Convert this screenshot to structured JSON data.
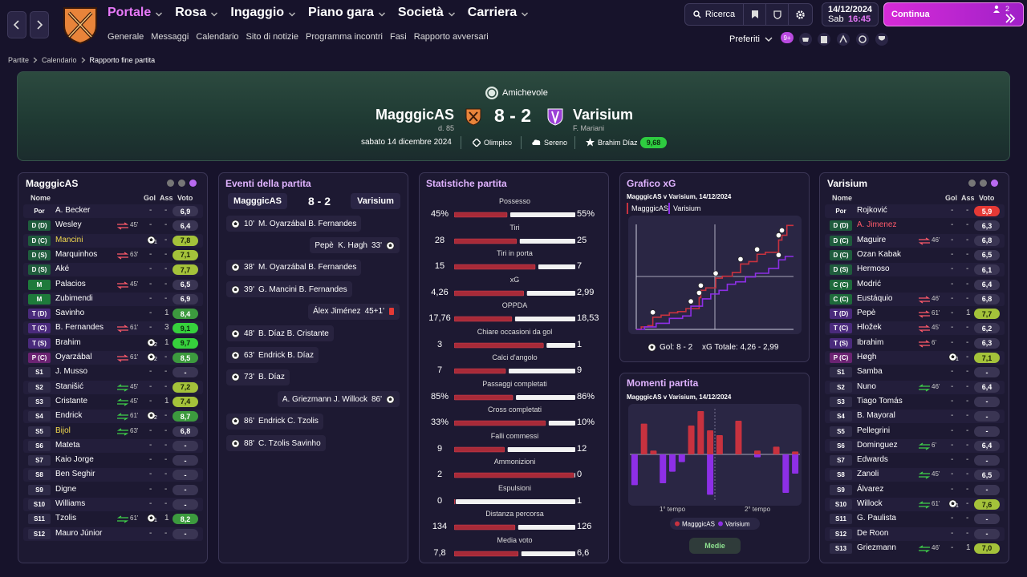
{
  "nav": {
    "menus": [
      "Portale",
      "Rosa",
      "Ingaggio",
      "Piano gara",
      "Società",
      "Carriera"
    ],
    "submenu": [
      "Generale",
      "Messaggi",
      "Calendario",
      "Sito di notizie",
      "Programma incontri",
      "Fasi",
      "Rapporto avversari"
    ],
    "search": "Ricerca",
    "date": "14/12/2024",
    "day": "Sab",
    "time": "16:45",
    "continue": "Continua",
    "notifications": "2",
    "favorites": "Preferiti",
    "badge": "9+"
  },
  "breadcrumb": [
    "Partite",
    "Calendario",
    "Rapporto fine partita"
  ],
  "match": {
    "competition": "Amichevole",
    "home": "MagggicAS",
    "home_note": "d. 85",
    "score": "8 - 2",
    "away": "Varisium",
    "away_note": "F. Mariani",
    "date": "sabato 14 dicembre 2024",
    "stadium": "Olimpico",
    "weather": "Sereno",
    "motm": "Brahim Díaz",
    "motm_rating": "9,68"
  },
  "lineups": {
    "columns": [
      "Nome",
      "Gol",
      "Ass",
      "Voto"
    ],
    "home": {
      "team": "MagggicAS",
      "players": [
        {
          "pos": "Por",
          "name": "A. Becker",
          "gol": "-",
          "ass": "-",
          "voto": "6,9"
        },
        {
          "pos": "D (D)",
          "name": "Wesley",
          "sub": "45'",
          "sub_dir": "out",
          "gol": "-",
          "ass": "-",
          "voto": "6,4"
        },
        {
          "pos": "D (C)",
          "name": "Mancini",
          "color": "#f2d94e",
          "gol": 1,
          "ass": "-",
          "voto": "7,8"
        },
        {
          "pos": "D (S)",
          "name": "Marquinhos",
          "sub": "63'",
          "sub_dir": "out",
          "gol": "-",
          "ass": "-",
          "voto": "7,1"
        },
        {
          "pos": "D (S)",
          "name": "Aké",
          "gol": "-",
          "ass": "-",
          "voto": "7,7"
        },
        {
          "pos": "M",
          "name": "Palacios",
          "sub": "45'",
          "sub_dir": "out",
          "gol": "-",
          "ass": "-",
          "voto": "6,5"
        },
        {
          "pos": "M",
          "name": "Zubimendi",
          "gol": "-",
          "ass": "-",
          "voto": "6,9"
        },
        {
          "pos": "T (D)",
          "name": "Savinho",
          "gol": "-",
          "ass": 1,
          "voto": "8,4"
        },
        {
          "pos": "T (C)",
          "name": "B. Fernandes",
          "sub": "61'",
          "sub_dir": "out",
          "gol": "-",
          "ass": 3,
          "voto": "9,1"
        },
        {
          "pos": "T (S)",
          "name": "Brahim",
          "gol": 2,
          "ass": 1,
          "voto": "9,7"
        },
        {
          "pos": "P (C)",
          "name": "Oyarzábal",
          "sub": "61'",
          "sub_dir": "out",
          "gol": 2,
          "ass": "-",
          "voto": "8,5"
        },
        {
          "pos": "S1",
          "name": "J. Musso",
          "gol": "-",
          "ass": "-",
          "voto": "-"
        },
        {
          "pos": "S2",
          "name": "Stanišić",
          "sub": "45'",
          "sub_dir": "in",
          "gol": "-",
          "ass": "-",
          "voto": "7,2"
        },
        {
          "pos": "S3",
          "name": "Cristante",
          "sub": "45'",
          "sub_dir": "in",
          "gol": "-",
          "ass": 1,
          "voto": "7,4"
        },
        {
          "pos": "S4",
          "name": "Endrick",
          "sub": "61'",
          "sub_dir": "in",
          "gol": 2,
          "ass": "-",
          "voto": "8,7"
        },
        {
          "pos": "S5",
          "name": "Bijol",
          "color": "#f2d94e",
          "sub": "63'",
          "sub_dir": "in",
          "gol": "-",
          "ass": "-",
          "voto": "6,8"
        },
        {
          "pos": "S6",
          "name": "Mateta",
          "gol": "-",
          "ass": "-",
          "voto": "-"
        },
        {
          "pos": "S7",
          "name": "Kaio Jorge",
          "gol": "-",
          "ass": "-",
          "voto": "-"
        },
        {
          "pos": "S8",
          "name": "Ben Seghir",
          "gol": "-",
          "ass": "-",
          "voto": "-"
        },
        {
          "pos": "S9",
          "name": "Digne",
          "gol": "-",
          "ass": "-",
          "voto": "-"
        },
        {
          "pos": "S10",
          "name": "Williams",
          "gol": "-",
          "ass": "-",
          "voto": "-"
        },
        {
          "pos": "S11",
          "name": "Tzolis",
          "sub": "61'",
          "sub_dir": "in",
          "gol": 1,
          "ass": 1,
          "voto": "8,2"
        },
        {
          "pos": "S12",
          "name": "Mauro Júnior",
          "gol": "-",
          "ass": "-",
          "voto": "-"
        }
      ]
    },
    "away": {
      "team": "Varisium",
      "players": [
        {
          "pos": "Por",
          "name": "Rojković",
          "gol": "-",
          "ass": "-",
          "voto": "5,9"
        },
        {
          "pos": "D (D)",
          "name": "A. Jimenez",
          "color": "#ff5a6a",
          "gol": "-",
          "ass": "-",
          "voto": "6,3"
        },
        {
          "pos": "D (C)",
          "name": "Maguire",
          "sub": "46'",
          "sub_dir": "out",
          "gol": "-",
          "ass": "-",
          "voto": "6,8"
        },
        {
          "pos": "D (C)",
          "name": "Ozan Kabak",
          "gol": "-",
          "ass": "-",
          "voto": "6,5"
        },
        {
          "pos": "D (S)",
          "name": "Hermoso",
          "gol": "-",
          "ass": "-",
          "voto": "6,1"
        },
        {
          "pos": "C (C)",
          "name": "Modrić",
          "gol": "-",
          "ass": "-",
          "voto": "6,4"
        },
        {
          "pos": "C (C)",
          "name": "Eustáquio",
          "sub": "46'",
          "sub_dir": "out",
          "gol": "-",
          "ass": "-",
          "voto": "6,8"
        },
        {
          "pos": "T (D)",
          "name": "Pepè",
          "sub": "61'",
          "sub_dir": "out",
          "gol": "-",
          "ass": 1,
          "voto": "7,7"
        },
        {
          "pos": "T (C)",
          "name": "Hložek",
          "sub": "45'",
          "sub_dir": "out",
          "gol": "-",
          "ass": "-",
          "voto": "6,2"
        },
        {
          "pos": "T (S)",
          "name": "Ibrahim",
          "sub": "6'",
          "sub_dir": "out",
          "gol": "-",
          "ass": "-",
          "voto": "6,3"
        },
        {
          "pos": "P (C)",
          "name": "Høgh",
          "gol": 1,
          "ass": "-",
          "voto": "7,1"
        },
        {
          "pos": "S1",
          "name": "Samba",
          "gol": "-",
          "ass": "-",
          "voto": "-"
        },
        {
          "pos": "S2",
          "name": "Nuno",
          "sub": "46'",
          "sub_dir": "in",
          "gol": "-",
          "ass": "-",
          "voto": "6,4"
        },
        {
          "pos": "S3",
          "name": "Tiago Tomás",
          "gol": "-",
          "ass": "-",
          "voto": "-"
        },
        {
          "pos": "S4",
          "name": "B. Mayoral",
          "gol": "-",
          "ass": "-",
          "voto": "-"
        },
        {
          "pos": "S5",
          "name": "Pellegrini",
          "gol": "-",
          "ass": "-",
          "voto": "-"
        },
        {
          "pos": "S6",
          "name": "Dominguez",
          "sub": "6'",
          "sub_dir": "in",
          "gol": "-",
          "ass": "-",
          "voto": "6,4"
        },
        {
          "pos": "S7",
          "name": "Edwards",
          "gol": "-",
          "ass": "-",
          "voto": "-"
        },
        {
          "pos": "S8",
          "name": "Zanoli",
          "sub": "45'",
          "sub_dir": "in",
          "gol": "-",
          "ass": "-",
          "voto": "6,5"
        },
        {
          "pos": "S9",
          "name": "Álvarez",
          "gol": "-",
          "ass": "-",
          "voto": "-"
        },
        {
          "pos": "S10",
          "name": "Willock",
          "sub": "61'",
          "sub_dir": "in",
          "gol": 1,
          "ass": "-",
          "voto": "7,6"
        },
        {
          "pos": "S11",
          "name": "G. Paulista",
          "gol": "-",
          "ass": "-",
          "voto": "-"
        },
        {
          "pos": "S12",
          "name": "De Roon",
          "gol": "-",
          "ass": "-",
          "voto": "-"
        },
        {
          "pos": "S13",
          "name": "Griezmann",
          "sub": "46'",
          "sub_dir": "in",
          "gol": "-",
          "ass": 1,
          "voto": "7,0"
        }
      ]
    }
  },
  "events": {
    "title": "Eventi della partita",
    "home": "MagggicAS",
    "score": "8 - 2",
    "away": "Varisium",
    "items": [
      {
        "side": "home",
        "type": "goal",
        "minute": "10'",
        "players": "M. Oyarzábal B. Fernandes"
      },
      {
        "side": "away",
        "type": "goal",
        "minute": "33'",
        "players": "Pepè  K. Høgh"
      },
      {
        "side": "home",
        "type": "goal",
        "minute": "38'",
        "players": "M. Oyarzábal B. Fernandes"
      },
      {
        "side": "home",
        "type": "goal",
        "minute": "39'",
        "players": "G. Mancini B. Fernandes"
      },
      {
        "side": "away",
        "type": "red",
        "minute": "45+1'",
        "players": "Álex Jiménez"
      },
      {
        "side": "home",
        "type": "goal",
        "minute": "48'",
        "players": "B. Díaz B. Cristante"
      },
      {
        "side": "home",
        "type": "goal",
        "minute": "63'",
        "players": "Endrick B. Díaz"
      },
      {
        "side": "home",
        "type": "goal",
        "minute": "73'",
        "players": "B. Díaz"
      },
      {
        "side": "away",
        "type": "goal",
        "minute": "86'",
        "players": "A. Griezmann J. Willock"
      },
      {
        "side": "home",
        "type": "goal",
        "minute": "86'",
        "players": "Endrick C. Tzolis"
      },
      {
        "side": "home",
        "type": "goal",
        "minute": "88'",
        "players": "C. Tzolis Savinho"
      }
    ]
  },
  "stats": {
    "title": "Statistiche partita",
    "items": [
      {
        "label": "Possesso",
        "values": [
          45,
          55
        ],
        "value_labels": [
          "45%",
          "55%"
        ]
      },
      {
        "label": "Tiri",
        "values": [
          28,
          25
        ]
      },
      {
        "label": "Tiri in porta",
        "values": [
          15,
          7
        ]
      },
      {
        "label": "xG",
        "values": [
          4.26,
          2.99
        ],
        "value_labels": [
          "4,26",
          "2,99"
        ]
      },
      {
        "label": "OPPDA",
        "values": [
          17.76,
          18.53
        ],
        "value_labels": [
          "17,76",
          "18,53"
        ]
      },
      {
        "label": "Chiare occasioni da gol",
        "values": [
          3,
          1
        ]
      },
      {
        "label": "Calci d'angolo",
        "values": [
          7,
          9
        ]
      },
      {
        "label": "Passaggi completati",
        "values": [
          85,
          86
        ],
        "value_labels": [
          "85%",
          "86%"
        ]
      },
      {
        "label": "Cross completati",
        "values": [
          33,
          10
        ],
        "value_labels": [
          "33%",
          "10%"
        ]
      },
      {
        "label": "Falli commessi",
        "values": [
          9,
          12
        ]
      },
      {
        "label": "Ammonizioni",
        "values": [
          2,
          0
        ]
      },
      {
        "label": "Espulsioni",
        "values": [
          0,
          1
        ]
      },
      {
        "label": "Distanza percorsa",
        "values": [
          134,
          126
        ]
      },
      {
        "label": "Media voto",
        "values": [
          7.8,
          6.6
        ],
        "value_labels": [
          "7,8",
          "6,6"
        ]
      }
    ]
  },
  "chart_data": [
    {
      "type": "step",
      "title": "Grafico xG",
      "subtitle": "MagggicAS v Varisium, 14/12/2024",
      "xlim": [
        0,
        95
      ],
      "ylim": [
        0,
        4.6
      ],
      "series": [
        {
          "name": "MagggicAS",
          "color": "#c8323f",
          "x": [
            3,
            7,
            10,
            15,
            20,
            25,
            30,
            38,
            39,
            42,
            48,
            52,
            58,
            63,
            68,
            73,
            78,
            86,
            88,
            91
          ],
          "values": [
            0.1,
            0.05,
            0.35,
            0.08,
            0.1,
            0.05,
            0.12,
            0.45,
            0.3,
            0.1,
            0.4,
            0.08,
            0.15,
            0.35,
            0.1,
            0.3,
            0.08,
            0.5,
            0.2,
            0.4
          ],
          "goals": [
            false,
            false,
            true,
            false,
            false,
            false,
            false,
            true,
            true,
            false,
            true,
            false,
            false,
            true,
            false,
            true,
            false,
            true,
            true,
            false
          ]
        },
        {
          "name": "Varisium",
          "color": "#8d2fe6",
          "x": [
            5,
            12,
            20,
            28,
            33,
            40,
            45,
            50,
            55,
            60,
            66,
            72,
            80,
            86,
            90
          ],
          "values": [
            0.1,
            0.15,
            0.2,
            0.1,
            0.4,
            0.3,
            0.2,
            0.15,
            0.25,
            0.1,
            0.2,
            0.15,
            0.2,
            0.35,
            0.14
          ],
          "goals": [
            false,
            false,
            false,
            false,
            true,
            false,
            false,
            false,
            false,
            false,
            false,
            false,
            false,
            true,
            false
          ]
        }
      ],
      "footer_goals": "Gol: 8 - 2",
      "footer_xg": "xG Totale: 4,26 - 2,99"
    },
    {
      "type": "bar",
      "title": "Momenti partita",
      "subtitle": "MagggicAS v Varisium, 14/12/2024",
      "categories": [
        null,
        null,
        null,
        null,
        null,
        null,
        null,
        null,
        null,
        null,
        null,
        null,
        null,
        null,
        null,
        null,
        null,
        null
      ],
      "ylim": [
        0,
        50
      ],
      "halves": [
        "1° tempo",
        "2° tempo"
      ],
      "button": "Medie",
      "series": [
        {
          "name": "MagggicAS",
          "color": "#c8323f",
          "direction": "up",
          "values": [
            0,
            32,
            4,
            0,
            0,
            0,
            30,
            45,
            25,
            20,
            0,
            35,
            0,
            4,
            0,
            8,
            0,
            3
          ]
        },
        {
          "name": "Varisium",
          "color": "#8d2fe6",
          "direction": "down",
          "values": [
            32,
            0,
            0,
            30,
            18,
            8,
            0,
            0,
            42,
            0,
            0,
            0,
            0,
            3,
            0,
            0,
            40,
            20
          ]
        }
      ]
    }
  ]
}
